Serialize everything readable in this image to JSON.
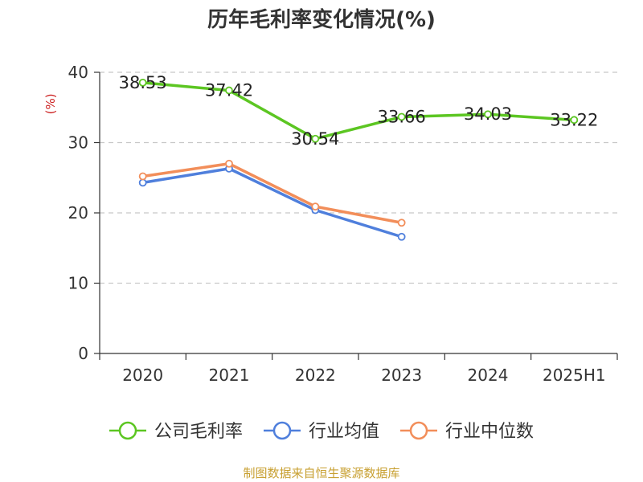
{
  "chart_data": {
    "type": "line",
    "title": "历年毛利率变化情况(%)",
    "ylabel": "(%)",
    "xlabel": "",
    "categories": [
      "2020",
      "2021",
      "2022",
      "2023",
      "2024",
      "2025H1"
    ],
    "ylim": [
      0,
      40
    ],
    "yticks": [
      0,
      10,
      20,
      30,
      40
    ],
    "grid": true,
    "legend_position": "bottom",
    "series": [
      {
        "name": "公司毛利率",
        "color": "#5cc622",
        "values": [
          38.53,
          37.42,
          30.54,
          33.66,
          34.03,
          33.22
        ],
        "labels": [
          "38.53",
          "37.42",
          "30.54",
          "33.66",
          "34.03",
          "33.22"
        ]
      },
      {
        "name": "行业均值",
        "color": "#4f7fdc",
        "values": [
          24.3,
          26.3,
          20.4,
          16.6,
          null,
          null
        ]
      },
      {
        "name": "行业中位数",
        "color": "#f28e5a",
        "values": [
          25.2,
          27.0,
          20.9,
          18.6,
          null,
          null
        ]
      }
    ]
  },
  "source": "制图数据来自恒生聚源数据库",
  "ylabel_color": "#cc2222"
}
